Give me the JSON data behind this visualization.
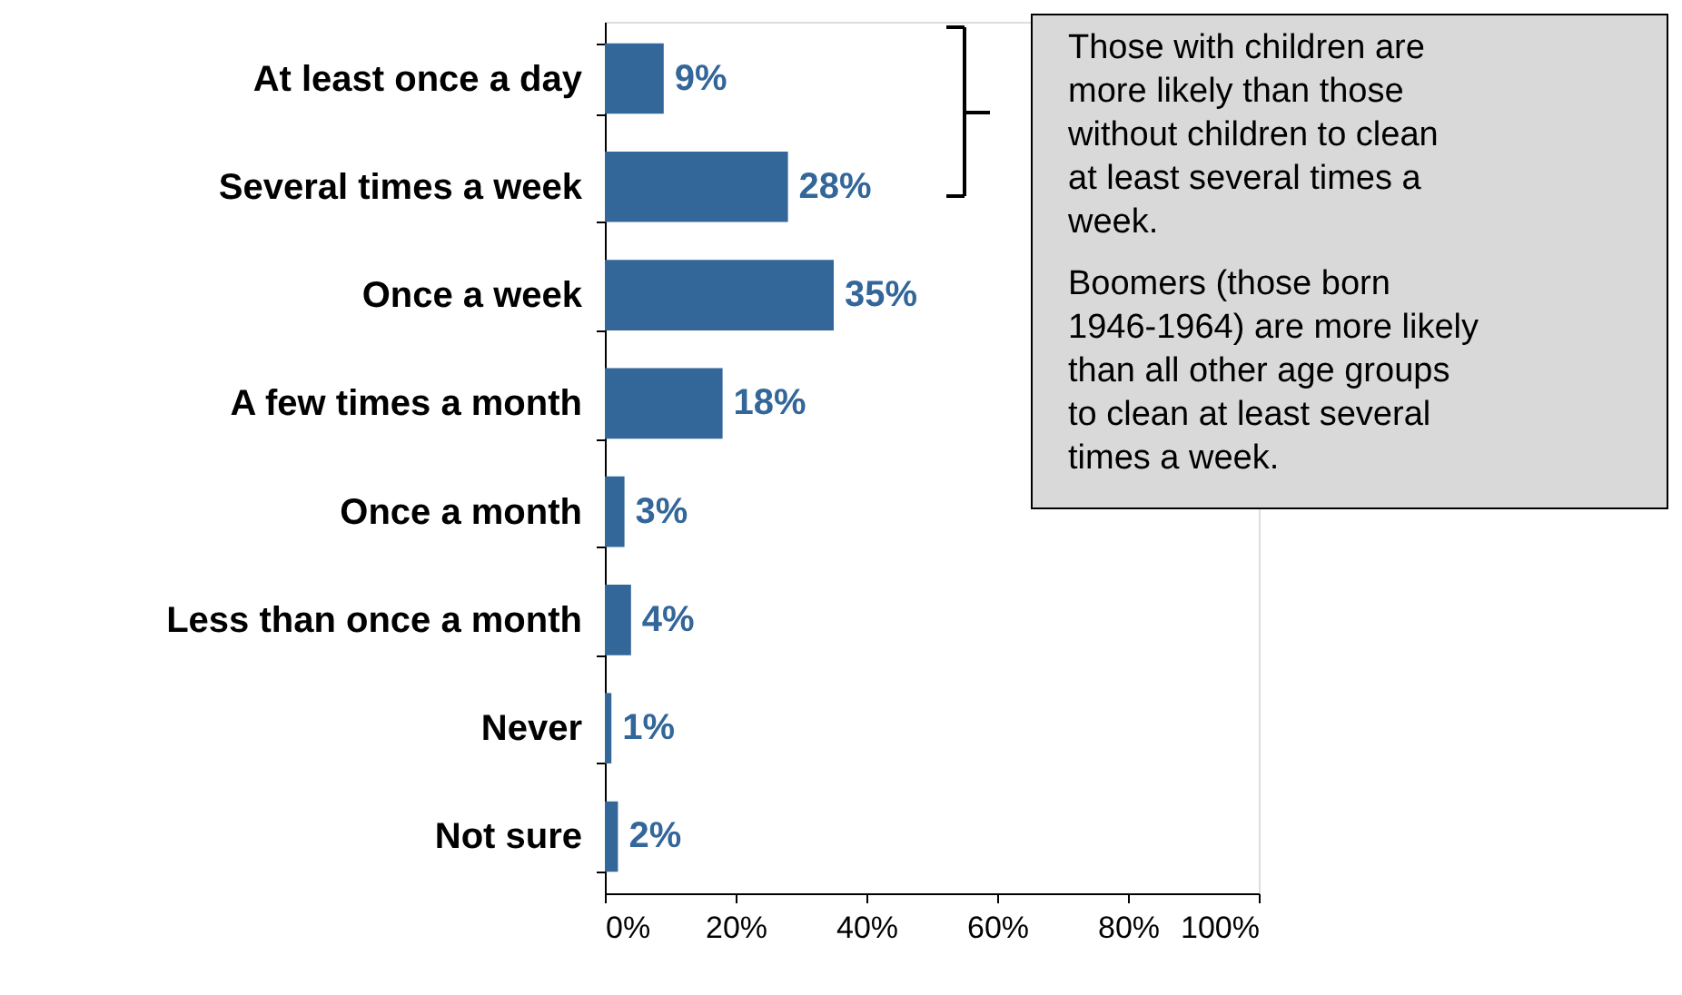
{
  "chart_data": {
    "type": "bar",
    "orientation": "horizontal",
    "categories": [
      "At least once a day",
      "Several times a week",
      "Once a week",
      "A few times a month",
      "Once a month",
      "Less than once a month",
      "Never",
      "Not sure"
    ],
    "values": [
      9,
      28,
      35,
      18,
      3,
      4,
      1,
      2
    ],
    "value_labels": [
      "9%",
      "28%",
      "35%",
      "18%",
      "3%",
      "4%",
      "1%",
      "2%"
    ],
    "color": "#336699",
    "xlim": [
      0,
      100
    ],
    "xticks": [
      {
        "value": 0,
        "label": "0%"
      },
      {
        "value": 20,
        "label": "20%"
      },
      {
        "value": 40,
        "label": "40%"
      },
      {
        "value": 60,
        "label": "60%"
      },
      {
        "value": 80,
        "label": "80%"
      },
      {
        "value": 100,
        "label": "100%"
      }
    ],
    "grid": false,
    "annotations": [
      "Those with children are more likely than those without children to clean at least several times a week.",
      "Boomers (those born 1946-1964) are more likely than all other age groups to clean at least several times a week."
    ]
  }
}
